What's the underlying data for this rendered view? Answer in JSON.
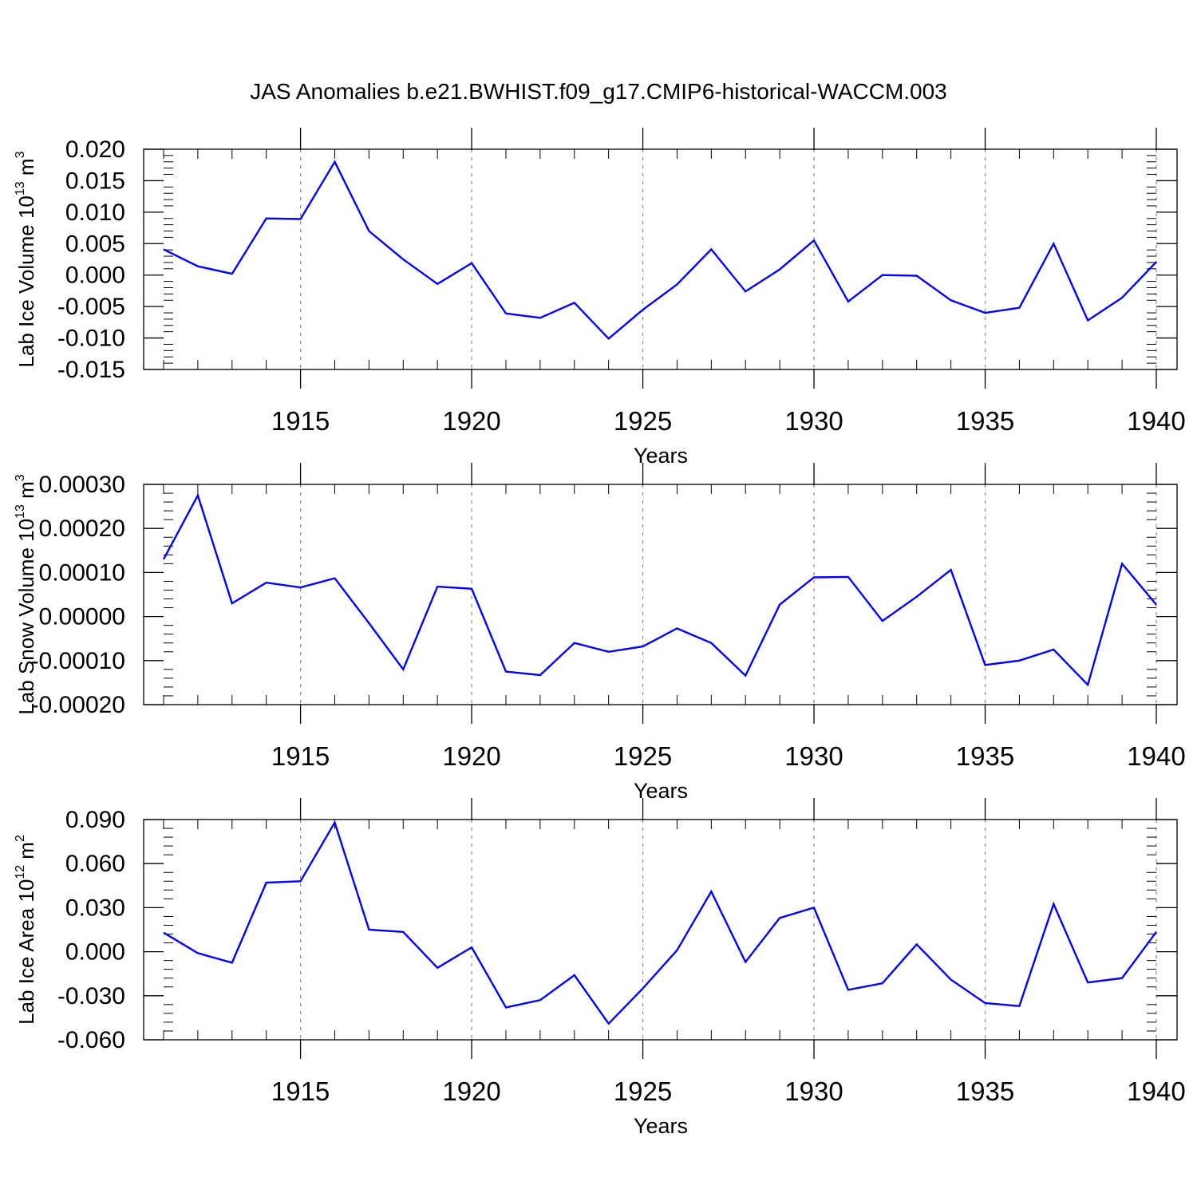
{
  "figure_title": "JAS Anomalies b.e21.BWHIST.f09_g17.CMIP6-historical-WACCM.003",
  "colors": {
    "line": "#0000ff",
    "axis": "#000000",
    "grid": "#888888"
  },
  "chart_data": [
    {
      "type": "line",
      "xlabel": "Years",
      "ylabel": {
        "prefix": "Lab Ice Volume 10",
        "exp": "13",
        "unit": " m",
        "unit_exp": "3"
      },
      "xlim": [
        1911,
        1940
      ],
      "ylim": [
        -0.015,
        0.02
      ],
      "xticks": [
        1915,
        1920,
        1925,
        1930,
        1935,
        1940
      ],
      "yticks": [
        {
          "value": 0.02,
          "label": "0.020"
        },
        {
          "value": 0.015,
          "label": "0.015"
        },
        {
          "value": 0.01,
          "label": "0.010"
        },
        {
          "value": 0.005,
          "label": "0.005"
        },
        {
          "value": 0.0,
          "label": "0.000"
        },
        {
          "value": -0.005,
          "label": "-0.005"
        },
        {
          "value": -0.01,
          "label": "-0.010"
        },
        {
          "value": -0.015,
          "label": "-0.015"
        }
      ],
      "grid": "dashed vertical at major x ticks",
      "series": [
        {
          "x": [
            1911,
            1912,
            1913,
            1914,
            1915,
            1916,
            1917,
            1918,
            1919,
            1920,
            1921,
            1922,
            1923,
            1924,
            1925,
            1926,
            1927,
            1928,
            1929,
            1930,
            1931,
            1932,
            1933,
            1934,
            1935,
            1936,
            1937,
            1938,
            1939,
            1940
          ],
          "y": [
            0.0041,
            0.0014,
            0.0002,
            0.009,
            0.0089,
            0.018,
            0.007,
            0.0025,
            -0.0014,
            0.0019,
            -0.0061,
            -0.0068,
            -0.0044,
            -0.0101,
            -0.0055,
            -0.0015,
            0.0041,
            -0.0026,
            0.0009,
            0.0055,
            -0.0042,
            0.0,
            -0.0001,
            -0.004,
            -0.006,
            -0.0052,
            0.005,
            -0.0072,
            -0.0036,
            0.0021
          ]
        }
      ]
    },
    {
      "type": "line",
      "xlabel": "Years",
      "ylabel": {
        "prefix": "Lab Snow Volume 10",
        "exp": "13",
        "unit": " m",
        "unit_exp": "3"
      },
      "xlim": [
        1911,
        1940
      ],
      "ylim": [
        -0.0002,
        0.0003
      ],
      "xticks": [
        1915,
        1920,
        1925,
        1930,
        1935,
        1940
      ],
      "yticks": [
        {
          "value": 0.0003,
          "label": "0.00030"
        },
        {
          "value": 0.0002,
          "label": "0.00020"
        },
        {
          "value": 0.0001,
          "label": "0.00010"
        },
        {
          "value": 0.0,
          "label": "0.00000"
        },
        {
          "value": -0.0001,
          "label": "-0.00010"
        },
        {
          "value": -0.0002,
          "label": "-0.00020"
        }
      ],
      "grid": "dashed vertical at major x ticks",
      "series": [
        {
          "x": [
            1911,
            1912,
            1913,
            1914,
            1915,
            1916,
            1917,
            1918,
            1919,
            1920,
            1921,
            1922,
            1923,
            1924,
            1925,
            1926,
            1927,
            1928,
            1929,
            1930,
            1931,
            1932,
            1933,
            1934,
            1935,
            1936,
            1937,
            1938,
            1939,
            1940
          ],
          "y": [
            0.00013,
            0.000275,
            3e-05,
            7.7e-05,
            6.6e-05,
            8.7e-05,
            -1.5e-05,
            -0.00012,
            6.8e-05,
            6.3e-05,
            -0.000125,
            -0.000133,
            -6e-05,
            -8e-05,
            -6.8e-05,
            -2.7e-05,
            -6e-05,
            -0.000134,
            2.7e-05,
            8.9e-05,
            9e-05,
            -1e-05,
            4.5e-05,
            0.000106,
            -0.00011,
            -0.0001,
            -7.5e-05,
            -0.000155,
            0.00012,
            2.7e-05
          ]
        }
      ]
    },
    {
      "type": "line",
      "xlabel": "Years",
      "ylabel": {
        "prefix": "Lab Ice Area 10",
        "exp": "12",
        "unit": " m",
        "unit_exp": "2"
      },
      "xlim": [
        1911,
        1940
      ],
      "ylim": [
        -0.06,
        0.09
      ],
      "xticks": [
        1915,
        1920,
        1925,
        1930,
        1935,
        1940
      ],
      "yticks": [
        {
          "value": 0.09,
          "label": "0.090"
        },
        {
          "value": 0.06,
          "label": "0.060"
        },
        {
          "value": 0.03,
          "label": "0.030"
        },
        {
          "value": 0.0,
          "label": "0.000"
        },
        {
          "value": -0.03,
          "label": "-0.030"
        },
        {
          "value": -0.06,
          "label": "-0.060"
        }
      ],
      "grid": "dashed vertical at major x ticks",
      "series": [
        {
          "x": [
            1911,
            1912,
            1913,
            1914,
            1915,
            1916,
            1917,
            1918,
            1919,
            1920,
            1921,
            1922,
            1923,
            1924,
            1925,
            1926,
            1927,
            1928,
            1929,
            1930,
            1931,
            1932,
            1933,
            1934,
            1935,
            1936,
            1937,
            1938,
            1939,
            1940
          ],
          "y": [
            0.013,
            -0.001,
            -0.0075,
            0.047,
            0.048,
            0.088,
            0.015,
            0.0135,
            -0.011,
            0.003,
            -0.038,
            -0.033,
            -0.016,
            -0.049,
            -0.025,
            0.001,
            0.041,
            -0.007,
            0.023,
            0.03,
            -0.026,
            -0.0215,
            0.005,
            -0.019,
            -0.035,
            -0.037,
            0.0325,
            -0.021,
            -0.018,
            0.0135
          ]
        }
      ]
    }
  ]
}
